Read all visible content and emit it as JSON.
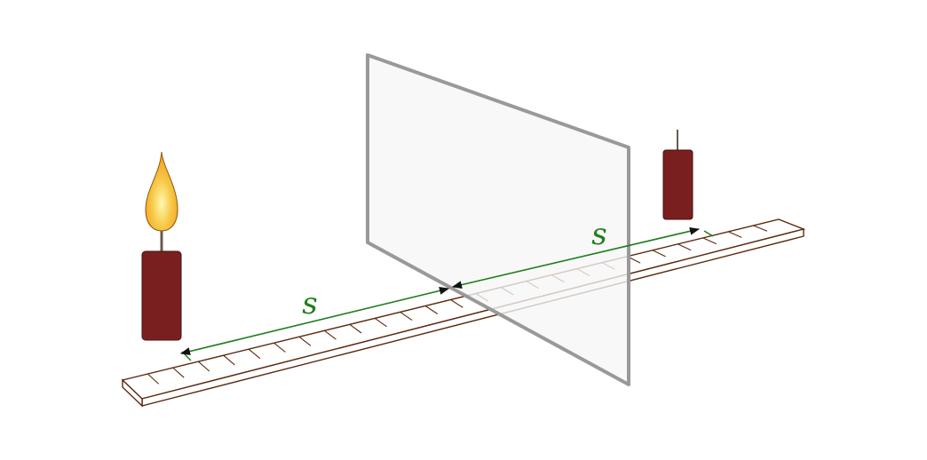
{
  "labels": {
    "left_distance": "s",
    "right_distance": "s"
  },
  "colors": {
    "ruler_stroke": "#5a2a10",
    "ruler_fill": "#ffffff",
    "mirror_fill": "#f6f6f6",
    "mirror_stroke": "#999999",
    "candle_body": "#7a1f1f",
    "candle_outline": "#4a0f0f",
    "wick": "#6b5a50",
    "flame_outer": "#f5b642",
    "flame_inner": "#fff7b0",
    "flame_mid": "#f7c948",
    "dimension": "#1e7d1e",
    "arrowhead": "#111111"
  },
  "icons": {
    "real_candle": "candle-with-flame-icon",
    "image_candle": "candle-image-icon",
    "mirror": "plane-mirror-icon",
    "ruler": "ruler-icon"
  }
}
